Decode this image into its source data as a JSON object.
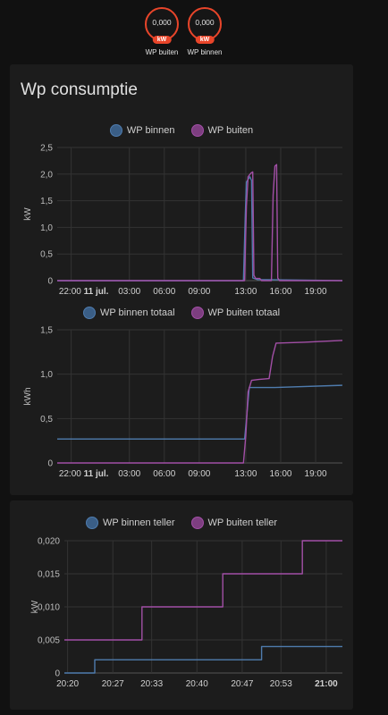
{
  "badges": [
    {
      "value": "0,000",
      "unit": "kW",
      "name": "WP buiten"
    },
    {
      "value": "0,000",
      "unit": "kW",
      "name": "WP binnen"
    }
  ],
  "card1": {
    "title": "Wp consumptie"
  },
  "colors": {
    "binnen": "#4f7cae",
    "buiten": "#a24fa6",
    "binnen_fill": "#3a5e86",
    "buiten_fill": "#7d3e80"
  },
  "chart_data": [
    {
      "type": "line",
      "ylabel": "kW",
      "ylim": [
        0,
        2.5
      ],
      "yticks": [
        "0",
        "0,5",
        "1,0",
        "1,5",
        "2,0",
        "2,5"
      ],
      "xticks": [
        {
          "label": "22:00",
          "bold": "11 jul.",
          "h": 0
        },
        {
          "label": "03:00",
          "h": 5
        },
        {
          "label": "06:00",
          "h": 8
        },
        {
          "label": "09:00",
          "h": 11
        },
        {
          "label": "13:00",
          "h": 15
        },
        {
          "label": "16:00",
          "h": 18
        },
        {
          "label": "19:00",
          "h": 21
        }
      ],
      "xrange": [
        -1.2,
        23.3
      ],
      "series": [
        {
          "name": "WP binnen",
          "color": "binnen",
          "points": [
            [
              -1.2,
              0
            ],
            [
              14.8,
              0
            ],
            [
              14.95,
              1.2
            ],
            [
              15.05,
              1.85
            ],
            [
              15.2,
              1.9
            ],
            [
              15.35,
              1.95
            ],
            [
              15.5,
              1.88
            ],
            [
              15.6,
              0.05
            ],
            [
              16.0,
              0.02
            ],
            [
              23.3,
              0
            ]
          ]
        },
        {
          "name": "WP buiten",
          "color": "buiten",
          "points": [
            [
              -1.2,
              0
            ],
            [
              14.9,
              0
            ],
            [
              15.05,
              1.4
            ],
            [
              15.2,
              1.95
            ],
            [
              15.45,
              2.02
            ],
            [
              15.6,
              2.04
            ],
            [
              15.7,
              0.1
            ],
            [
              15.85,
              0.04
            ],
            [
              16.2,
              0.04
            ],
            [
              16.35,
              0
            ],
            [
              17.2,
              0
            ],
            [
              17.35,
              1.6
            ],
            [
              17.5,
              2.15
            ],
            [
              17.65,
              2.18
            ],
            [
              17.75,
              0.05
            ],
            [
              17.9,
              0
            ],
            [
              23.3,
              0
            ]
          ]
        }
      ]
    },
    {
      "type": "line",
      "ylabel": "kWh",
      "ylim": [
        0,
        1.5
      ],
      "yticks": [
        "0",
        "0,5",
        "1,0",
        "1,5"
      ],
      "xticks": [
        {
          "label": "22:00",
          "bold": "11 jul.",
          "h": 0
        },
        {
          "label": "03:00",
          "h": 5
        },
        {
          "label": "06:00",
          "h": 8
        },
        {
          "label": "09:00",
          "h": 11
        },
        {
          "label": "13:00",
          "h": 15
        },
        {
          "label": "16:00",
          "h": 18
        },
        {
          "label": "19:00",
          "h": 21
        }
      ],
      "xrange": [
        -1.2,
        23.3
      ],
      "series": [
        {
          "name": "WP binnen totaal",
          "color": "binnen",
          "points": [
            [
              -1.2,
              0.27
            ],
            [
              14.9,
              0.27
            ],
            [
              15.1,
              0.55
            ],
            [
              15.3,
              0.85
            ],
            [
              17.5,
              0.85
            ],
            [
              23.3,
              0.875
            ]
          ]
        },
        {
          "name": "WP buiten totaal",
          "color": "buiten",
          "points": [
            [
              -1.2,
              0
            ],
            [
              14.8,
              0
            ],
            [
              15.0,
              0.3
            ],
            [
              15.2,
              0.8
            ],
            [
              15.5,
              0.93
            ],
            [
              16.1,
              0.94
            ],
            [
              17.0,
              0.95
            ],
            [
              17.3,
              1.2
            ],
            [
              17.6,
              1.35
            ],
            [
              20.0,
              1.36
            ],
            [
              23.3,
              1.38
            ]
          ]
        }
      ]
    },
    {
      "type": "line",
      "ylabel": "kW",
      "ylim": [
        0,
        0.02
      ],
      "yticks": [
        "0",
        "0,005",
        "0,010",
        "0,015",
        "0,020"
      ],
      "xticks": [
        {
          "label": "20:20",
          "m": 20
        },
        {
          "label": "20:27",
          "m": 27
        },
        {
          "label": "20:33",
          "m": 33
        },
        {
          "label": "20:40",
          "m": 40
        },
        {
          "label": "20:47",
          "m": 47
        },
        {
          "label": "20:53",
          "m": 53
        },
        {
          "label": "21:00",
          "m": 60,
          "strong": true
        }
      ],
      "xrange": [
        19.5,
        62.5
      ],
      "series": [
        {
          "name": "WP binnen teller",
          "color": "binnen",
          "points": [
            [
              19.5,
              0
            ],
            [
              24.2,
              0
            ],
            [
              24.2,
              0.002
            ],
            [
              50.0,
              0.002
            ],
            [
              50.0,
              0.004
            ],
            [
              62.5,
              0.004
            ]
          ]
        },
        {
          "name": "WP buiten teller",
          "color": "buiten",
          "points": [
            [
              19.5,
              0.005
            ],
            [
              31.5,
              0.005
            ],
            [
              31.5,
              0.01
            ],
            [
              44.0,
              0.01
            ],
            [
              44.0,
              0.015
            ],
            [
              56.3,
              0.015
            ],
            [
              56.3,
              0.02
            ],
            [
              62.5,
              0.02
            ]
          ]
        }
      ]
    }
  ]
}
